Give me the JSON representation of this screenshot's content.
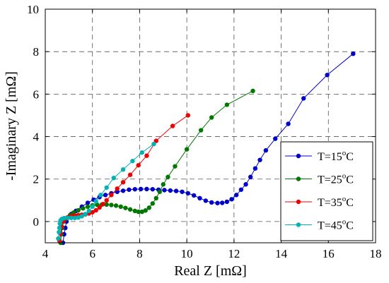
{
  "chart_data": {
    "type": "line",
    "xlabel": "Real Z [mΩ]",
    "ylabel": "-Imaginary Z [mΩ]",
    "xlim": [
      4,
      18
    ],
    "ylim": [
      -1,
      10
    ],
    "xticks": [
      4,
      6,
      8,
      10,
      12,
      14,
      16,
      18
    ],
    "yticks": [
      0,
      2,
      4,
      6,
      8,
      10
    ],
    "grid": true,
    "legend_position": "right",
    "series": [
      {
        "name": "T=15°C",
        "label_base": "T=15",
        "label_sup": "o",
        "label_unit": "C",
        "color": "#0000cc",
        "points": [
          [
            4.75,
            -1.0
          ],
          [
            4.8,
            -0.6
          ],
          [
            4.85,
            -0.3
          ],
          [
            4.9,
            0.0
          ],
          [
            5.0,
            0.2
          ],
          [
            5.1,
            0.35
          ],
          [
            5.3,
            0.5
          ],
          [
            5.55,
            0.7
          ],
          [
            5.8,
            0.88
          ],
          [
            6.05,
            1.03
          ],
          [
            6.3,
            1.15
          ],
          [
            6.55,
            1.25
          ],
          [
            6.8,
            1.33
          ],
          [
            7.05,
            1.4
          ],
          [
            7.3,
            1.45
          ],
          [
            7.55,
            1.5
          ],
          [
            7.8,
            1.52
          ],
          [
            8.05,
            1.53
          ],
          [
            8.3,
            1.53
          ],
          [
            8.55,
            1.52
          ],
          [
            8.8,
            1.5
          ],
          [
            9.05,
            1.48
          ],
          [
            9.3,
            1.46
          ],
          [
            9.55,
            1.44
          ],
          [
            9.8,
            1.4
          ],
          [
            10.05,
            1.33
          ],
          [
            10.3,
            1.23
          ],
          [
            10.55,
            1.1
          ],
          [
            10.8,
            0.98
          ],
          [
            11.05,
            0.9
          ],
          [
            11.3,
            0.87
          ],
          [
            11.5,
            0.88
          ],
          [
            11.7,
            0.93
          ],
          [
            11.9,
            1.05
          ],
          [
            12.1,
            1.25
          ],
          [
            12.3,
            1.5
          ],
          [
            12.5,
            1.75
          ],
          [
            12.7,
            2.1
          ],
          [
            12.9,
            2.5
          ],
          [
            13.1,
            2.9
          ],
          [
            13.35,
            3.35
          ],
          [
            13.75,
            3.9
          ],
          [
            14.3,
            4.6
          ],
          [
            14.95,
            5.8
          ],
          [
            15.95,
            6.9
          ],
          [
            17.05,
            7.9
          ]
        ]
      },
      {
        "name": "T=25°C",
        "label_base": "T=25",
        "label_sup": "o",
        "label_unit": "C",
        "color": "#007700",
        "points": [
          [
            4.65,
            -1.0
          ],
          [
            4.68,
            -0.6
          ],
          [
            4.72,
            -0.3
          ],
          [
            4.78,
            0.0
          ],
          [
            4.9,
            0.15
          ],
          [
            5.05,
            0.3
          ],
          [
            5.2,
            0.42
          ],
          [
            5.4,
            0.53
          ],
          [
            5.6,
            0.62
          ],
          [
            5.8,
            0.7
          ],
          [
            6.0,
            0.76
          ],
          [
            6.2,
            0.79
          ],
          [
            6.4,
            0.8
          ],
          [
            6.6,
            0.8
          ],
          [
            6.8,
            0.78
          ],
          [
            7.0,
            0.75
          ],
          [
            7.2,
            0.7
          ],
          [
            7.4,
            0.64
          ],
          [
            7.6,
            0.57
          ],
          [
            7.8,
            0.5
          ],
          [
            7.95,
            0.46
          ],
          [
            8.1,
            0.46
          ],
          [
            8.25,
            0.52
          ],
          [
            8.4,
            0.65
          ],
          [
            8.55,
            0.85
          ],
          [
            8.7,
            1.1
          ],
          [
            8.85,
            1.4
          ],
          [
            9.0,
            1.75
          ],
          [
            9.2,
            2.1
          ],
          [
            9.5,
            2.6
          ],
          [
            10.0,
            3.4
          ],
          [
            10.6,
            4.3
          ],
          [
            11.05,
            4.9
          ],
          [
            11.7,
            5.5
          ],
          [
            12.8,
            6.15
          ]
        ]
      },
      {
        "name": "T=35°C",
        "label_base": "T=35",
        "label_sup": "o",
        "label_unit": "C",
        "color": "#ee0000",
        "points": [
          [
            4.6,
            -0.9
          ],
          [
            4.65,
            -0.55
          ],
          [
            4.7,
            -0.25
          ],
          [
            4.75,
            0.0
          ],
          [
            4.85,
            0.12
          ],
          [
            4.95,
            0.2
          ],
          [
            5.1,
            0.25
          ],
          [
            5.25,
            0.28
          ],
          [
            5.4,
            0.3
          ],
          [
            5.55,
            0.32
          ],
          [
            5.7,
            0.34
          ],
          [
            5.85,
            0.38
          ],
          [
            6.0,
            0.44
          ],
          [
            6.15,
            0.53
          ],
          [
            6.3,
            0.66
          ],
          [
            6.45,
            0.82
          ],
          [
            6.6,
            1.0
          ],
          [
            6.8,
            1.25
          ],
          [
            7.05,
            1.55
          ],
          [
            7.3,
            1.85
          ],
          [
            7.6,
            2.2
          ],
          [
            7.95,
            2.65
          ],
          [
            8.3,
            3.1
          ],
          [
            8.7,
            3.8
          ],
          [
            9.4,
            4.5
          ],
          [
            10.05,
            5.0
          ]
        ]
      },
      {
        "name": "T=45°C",
        "label_base": "T=45",
        "label_sup": "o",
        "label_unit": "C",
        "color": "#00b3b3",
        "points": [
          [
            4.55,
            -0.8
          ],
          [
            4.58,
            -0.5
          ],
          [
            4.6,
            -0.3
          ],
          [
            4.62,
            -0.1
          ],
          [
            4.65,
            0.05
          ],
          [
            4.7,
            0.12
          ],
          [
            4.8,
            0.16
          ],
          [
            4.95,
            0.17
          ],
          [
            5.1,
            0.17
          ],
          [
            5.25,
            0.17
          ],
          [
            5.4,
            0.19
          ],
          [
            5.55,
            0.25
          ],
          [
            5.7,
            0.35
          ],
          [
            5.85,
            0.5
          ],
          [
            6.0,
            0.7
          ],
          [
            6.15,
            0.95
          ],
          [
            6.35,
            1.25
          ],
          [
            6.6,
            1.6
          ],
          [
            6.9,
            2.05
          ],
          [
            7.3,
            2.45
          ],
          [
            7.7,
            2.85
          ],
          [
            8.1,
            3.25
          ],
          [
            8.6,
            3.65
          ]
        ]
      }
    ]
  }
}
